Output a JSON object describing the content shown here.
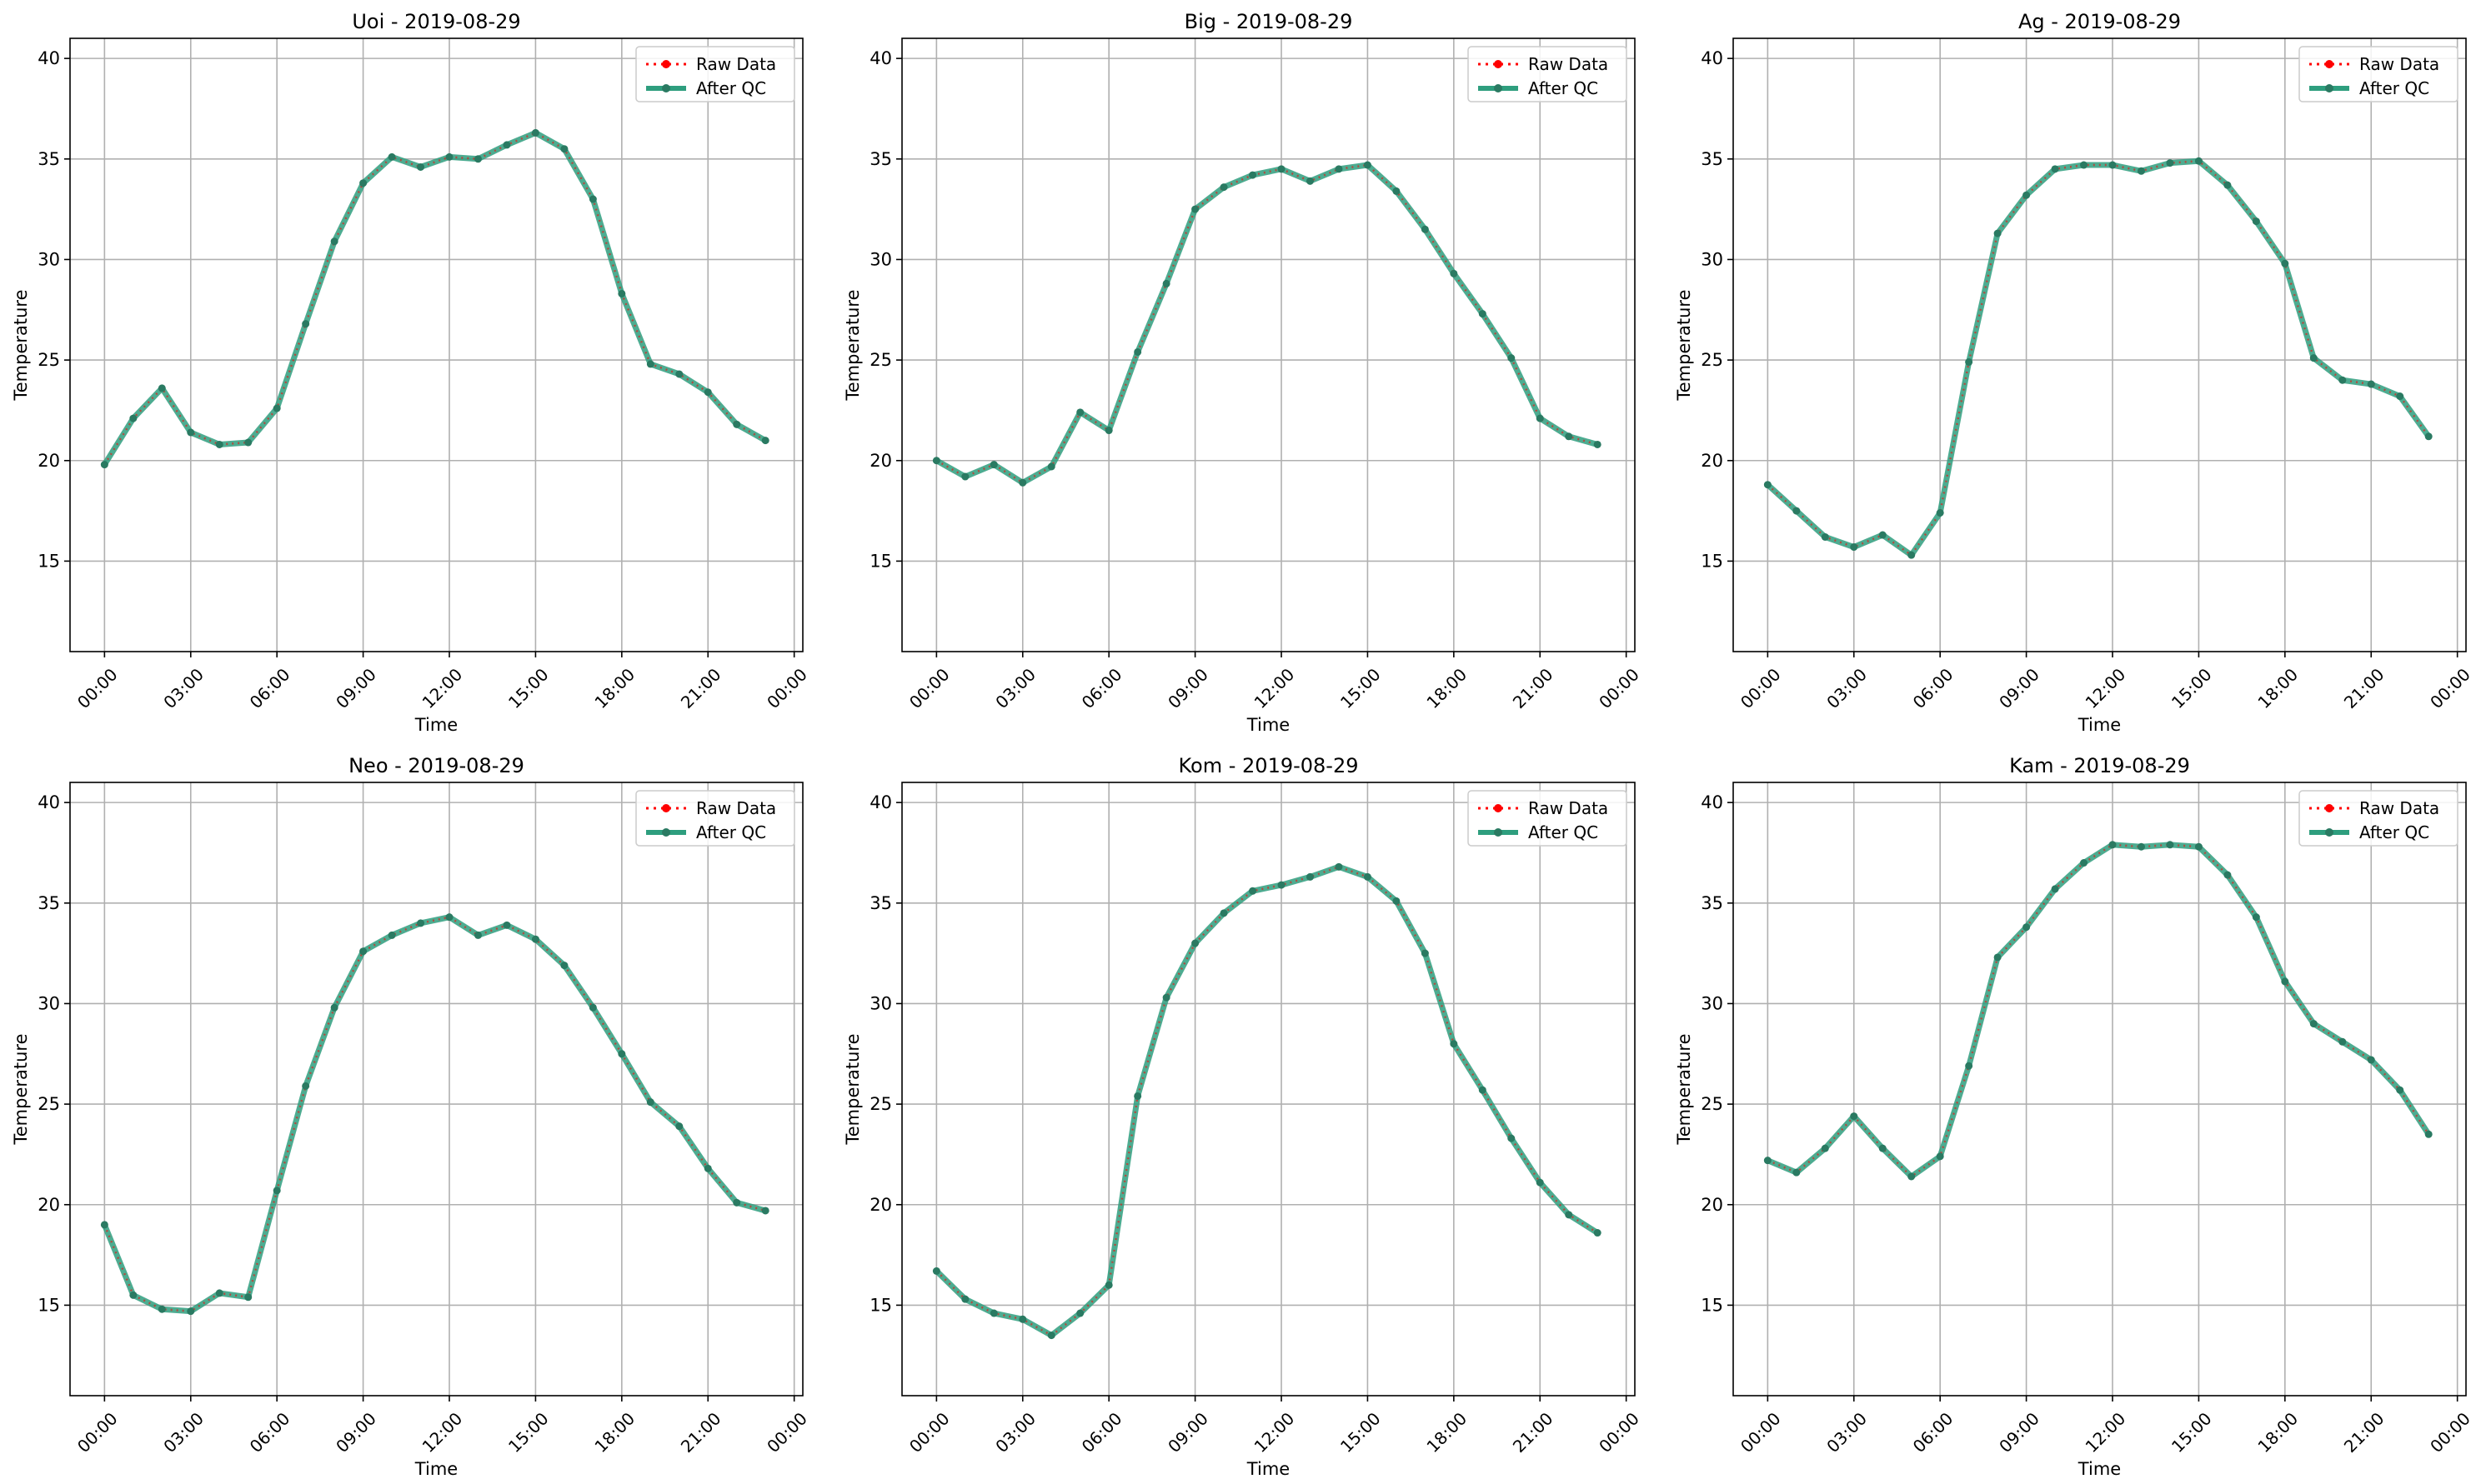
{
  "figure": {
    "tick_labels": [
      "00:00",
      "03:00",
      "06:00",
      "09:00",
      "12:00",
      "15:00",
      "18:00",
      "21:00",
      "00:00"
    ],
    "y_ticks": [
      15,
      20,
      25,
      30,
      35,
      40
    ],
    "ylim": [
      10.5,
      41
    ],
    "xlim": [
      -1.2,
      24.3
    ],
    "colors": {
      "raw": "#ff0000",
      "qc": "#2e9e7e",
      "qc_marker": "#2a7a62",
      "grid": "#b0b0b0"
    }
  },
  "chart_data": [
    {
      "type": "line",
      "title": "Uoi - 2019-08-29",
      "xlabel": "Time",
      "ylabel": "Temperature",
      "legend": [
        "Raw Data",
        "After QC"
      ],
      "legend_position": "top-right",
      "grid": true,
      "x": [
        "00:00",
        "01:00",
        "02:00",
        "03:00",
        "04:00",
        "05:00",
        "06:00",
        "07:00",
        "08:00",
        "09:00",
        "10:00",
        "11:00",
        "12:00",
        "13:00",
        "14:00",
        "15:00",
        "16:00",
        "17:00",
        "18:00",
        "19:00",
        "20:00",
        "21:00",
        "22:00",
        "23:00"
      ],
      "series": [
        {
          "name": "Raw Data",
          "values": [
            19.8,
            22.1,
            23.6,
            21.4,
            20.8,
            20.9,
            22.6,
            26.8,
            30.9,
            33.8,
            35.1,
            34.6,
            35.1,
            35.0,
            35.7,
            36.3,
            35.5,
            33.0,
            28.3,
            24.8,
            24.3,
            23.4,
            21.8,
            21.0
          ]
        },
        {
          "name": "After QC",
          "values": [
            19.8,
            22.1,
            23.6,
            21.4,
            20.8,
            20.9,
            22.6,
            26.8,
            30.9,
            33.8,
            35.1,
            34.6,
            35.1,
            35.0,
            35.7,
            36.3,
            35.5,
            33.0,
            28.3,
            24.8,
            24.3,
            23.4,
            21.8,
            21.0
          ]
        }
      ]
    },
    {
      "type": "line",
      "title": "Big - 2019-08-29",
      "xlabel": "Time",
      "ylabel": "Temperature",
      "legend": [
        "Raw Data",
        "After QC"
      ],
      "legend_position": "top-right",
      "grid": true,
      "x": [
        "00:00",
        "01:00",
        "02:00",
        "03:00",
        "04:00",
        "05:00",
        "06:00",
        "07:00",
        "08:00",
        "09:00",
        "10:00",
        "11:00",
        "12:00",
        "13:00",
        "14:00",
        "15:00",
        "16:00",
        "17:00",
        "18:00",
        "19:00",
        "20:00",
        "21:00",
        "22:00",
        "23:00"
      ],
      "series": [
        {
          "name": "Raw Data",
          "values": [
            20.0,
            19.2,
            19.8,
            18.9,
            19.7,
            22.4,
            21.5,
            25.4,
            28.8,
            32.5,
            33.6,
            34.2,
            34.5,
            33.9,
            34.5,
            34.7,
            33.4,
            31.5,
            29.3,
            27.3,
            25.1,
            22.1,
            21.2,
            20.8
          ]
        },
        {
          "name": "After QC",
          "values": [
            20.0,
            19.2,
            19.8,
            18.9,
            19.7,
            22.4,
            21.5,
            25.4,
            28.8,
            32.5,
            33.6,
            34.2,
            34.5,
            33.9,
            34.5,
            34.7,
            33.4,
            31.5,
            29.3,
            27.3,
            25.1,
            22.1,
            21.2,
            20.8
          ]
        }
      ]
    },
    {
      "type": "line",
      "title": "Ag - 2019-08-29",
      "xlabel": "Time",
      "ylabel": "Temperature",
      "legend": [
        "Raw Data",
        "After QC"
      ],
      "legend_position": "top-right",
      "grid": true,
      "x": [
        "00:00",
        "01:00",
        "02:00",
        "03:00",
        "04:00",
        "05:00",
        "06:00",
        "07:00",
        "08:00",
        "09:00",
        "10:00",
        "11:00",
        "12:00",
        "13:00",
        "14:00",
        "15:00",
        "16:00",
        "17:00",
        "18:00",
        "19:00",
        "20:00",
        "21:00",
        "22:00",
        "23:00"
      ],
      "series": [
        {
          "name": "Raw Data",
          "values": [
            18.8,
            17.5,
            16.2,
            15.7,
            16.3,
            15.3,
            17.4,
            24.9,
            31.3,
            33.2,
            34.5,
            34.7,
            34.7,
            34.4,
            34.8,
            34.9,
            33.7,
            31.9,
            29.8,
            25.1,
            24.0,
            23.8,
            23.2,
            21.2
          ]
        },
        {
          "name": "After QC",
          "values": [
            18.8,
            17.5,
            16.2,
            15.7,
            16.3,
            15.3,
            17.4,
            24.9,
            31.3,
            33.2,
            34.5,
            34.7,
            34.7,
            34.4,
            34.8,
            34.9,
            33.7,
            31.9,
            29.8,
            25.1,
            24.0,
            23.8,
            23.2,
            21.2
          ]
        }
      ]
    },
    {
      "type": "line",
      "title": "Neo - 2019-08-29",
      "xlabel": "Time",
      "ylabel": "Temperature",
      "legend": [
        "Raw Data",
        "After QC"
      ],
      "legend_position": "top-right",
      "grid": true,
      "x": [
        "00:00",
        "01:00",
        "02:00",
        "03:00",
        "04:00",
        "05:00",
        "06:00",
        "07:00",
        "08:00",
        "09:00",
        "10:00",
        "11:00",
        "12:00",
        "13:00",
        "14:00",
        "15:00",
        "16:00",
        "17:00",
        "18:00",
        "19:00",
        "20:00",
        "21:00",
        "22:00",
        "23:00"
      ],
      "series": [
        {
          "name": "Raw Data",
          "values": [
            19.0,
            15.5,
            14.8,
            14.7,
            15.6,
            15.4,
            20.7,
            25.9,
            29.8,
            32.6,
            33.4,
            34.0,
            34.3,
            33.4,
            33.9,
            33.2,
            31.9,
            29.8,
            27.5,
            25.1,
            23.9,
            21.8,
            20.1,
            19.7
          ]
        },
        {
          "name": "After QC",
          "values": [
            19.0,
            15.5,
            14.8,
            14.7,
            15.6,
            15.4,
            20.7,
            25.9,
            29.8,
            32.6,
            33.4,
            34.0,
            34.3,
            33.4,
            33.9,
            33.2,
            31.9,
            29.8,
            27.5,
            25.1,
            23.9,
            21.8,
            20.1,
            19.7
          ]
        }
      ]
    },
    {
      "type": "line",
      "title": "Kom - 2019-08-29",
      "xlabel": "Time",
      "ylabel": "Temperature",
      "legend": [
        "Raw Data",
        "After QC"
      ],
      "legend_position": "top-right",
      "grid": true,
      "x": [
        "00:00",
        "01:00",
        "02:00",
        "03:00",
        "04:00",
        "05:00",
        "06:00",
        "07:00",
        "08:00",
        "09:00",
        "10:00",
        "11:00",
        "12:00",
        "13:00",
        "14:00",
        "15:00",
        "16:00",
        "17:00",
        "18:00",
        "19:00",
        "20:00",
        "21:00",
        "22:00",
        "23:00"
      ],
      "series": [
        {
          "name": "Raw Data",
          "values": [
            16.7,
            15.3,
            14.6,
            14.3,
            13.5,
            14.6,
            16.0,
            25.4,
            30.3,
            33.0,
            34.5,
            35.6,
            35.9,
            36.3,
            36.8,
            36.3,
            35.1,
            32.5,
            28.0,
            25.7,
            23.3,
            21.1,
            19.5,
            18.6
          ]
        },
        {
          "name": "After QC",
          "values": [
            16.7,
            15.3,
            14.6,
            14.3,
            13.5,
            14.6,
            16.0,
            25.4,
            30.3,
            33.0,
            34.5,
            35.6,
            35.9,
            36.3,
            36.8,
            36.3,
            35.1,
            32.5,
            28.0,
            25.7,
            23.3,
            21.1,
            19.5,
            18.6
          ]
        }
      ]
    },
    {
      "type": "line",
      "title": "Kam - 2019-08-29",
      "xlabel": "Time",
      "ylabel": "Temperature",
      "legend": [
        "Raw Data",
        "After QC"
      ],
      "legend_position": "top-right",
      "grid": true,
      "x": [
        "00:00",
        "01:00",
        "02:00",
        "03:00",
        "04:00",
        "05:00",
        "06:00",
        "07:00",
        "08:00",
        "09:00",
        "10:00",
        "11:00",
        "12:00",
        "13:00",
        "14:00",
        "15:00",
        "16:00",
        "17:00",
        "18:00",
        "19:00",
        "20:00",
        "21:00",
        "22:00",
        "23:00"
      ],
      "series": [
        {
          "name": "Raw Data",
          "values": [
            22.2,
            21.6,
            22.8,
            24.4,
            22.8,
            21.4,
            22.4,
            26.9,
            32.3,
            33.8,
            35.7,
            37.0,
            37.9,
            37.8,
            37.9,
            37.8,
            36.4,
            34.3,
            31.1,
            29.0,
            28.1,
            27.2,
            25.7,
            23.5
          ]
        },
        {
          "name": "After QC",
          "values": [
            22.2,
            21.6,
            22.8,
            24.4,
            22.8,
            21.4,
            22.4,
            26.9,
            32.3,
            33.8,
            35.7,
            37.0,
            37.9,
            37.8,
            37.9,
            37.8,
            36.4,
            34.3,
            31.1,
            29.0,
            28.1,
            27.2,
            25.7,
            23.5
          ]
        }
      ]
    }
  ]
}
